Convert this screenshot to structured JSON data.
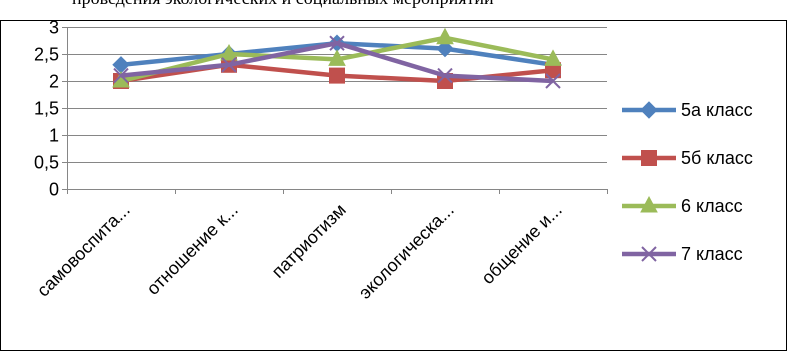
{
  "header": {
    "cut_text": "проведения экологических и социальных мероприятий"
  },
  "chart_data": {
    "type": "line",
    "categories": [
      "самовоспита...",
      "отношение к...",
      "патриотизм",
      "экологическа...",
      "общение  и..."
    ],
    "ylim": [
      0,
      3
    ],
    "yticks": [
      {
        "value": 0,
        "label": "0"
      },
      {
        "value": 0.5,
        "label": "0,5"
      },
      {
        "value": 1,
        "label": "1"
      },
      {
        "value": 1.5,
        "label": "1,5"
      },
      {
        "value": 2,
        "label": "2"
      },
      {
        "value": 2.5,
        "label": "2,5"
      },
      {
        "value": 3,
        "label": "3"
      }
    ],
    "grid": true,
    "legend_position": "right",
    "series": [
      {
        "name": "5а класс",
        "color": "#4F81BD",
        "marker": "diamond",
        "values": [
          2.3,
          2.5,
          2.7,
          2.6,
          2.3
        ]
      },
      {
        "name": "5б класс",
        "color": "#C0504D",
        "marker": "square",
        "values": [
          2.0,
          2.3,
          2.1,
          2.0,
          2.2
        ]
      },
      {
        "name": "6 класс",
        "color": "#9BBB59",
        "marker": "triangle",
        "values": [
          2.0,
          2.5,
          2.4,
          2.8,
          2.4
        ]
      },
      {
        "name": "7 класс",
        "color": "#8064A2",
        "marker": "x",
        "values": [
          2.1,
          2.3,
          2.7,
          2.1,
          2.0
        ]
      }
    ]
  }
}
